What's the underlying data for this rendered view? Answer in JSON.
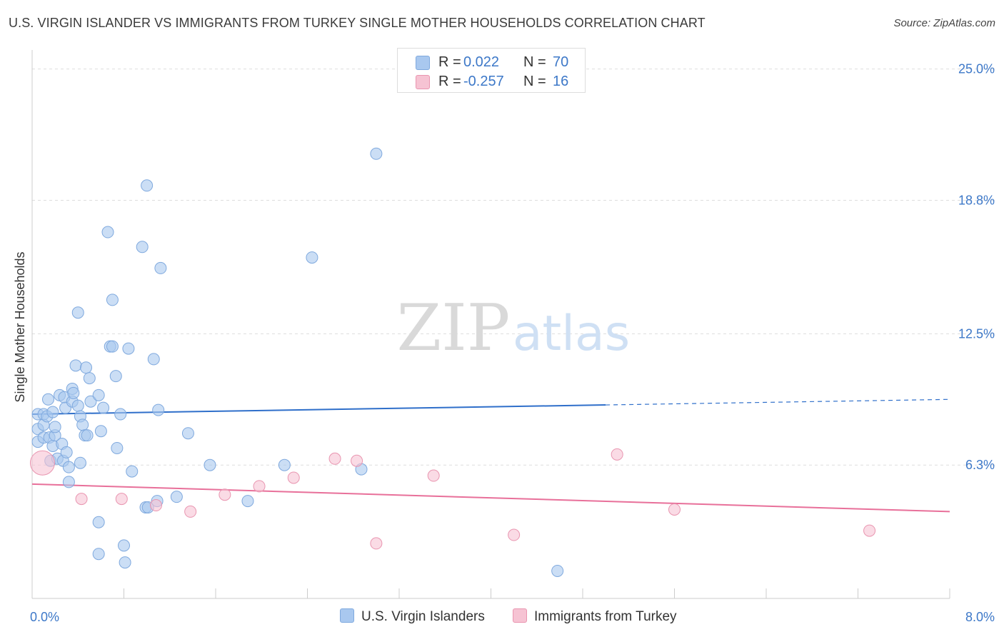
{
  "title": "U.S. VIRGIN ISLANDER VS IMMIGRANTS FROM TURKEY SINGLE MOTHER HOUSEHOLDS CORRELATION CHART",
  "source": "Source: ZipAtlas.com",
  "watermark": {
    "zip": "ZIP",
    "atlas": "atlas"
  },
  "colors": {
    "blue_fill": "#a9c8ef",
    "blue_stroke": "#7fa9de",
    "blue_line": "#2f6fca",
    "pink_fill": "#f6c3d3",
    "pink_stroke": "#e995b0",
    "pink_line": "#e8709a",
    "axis_text": "#3d78c8",
    "grid": "#dddddd"
  },
  "legend_top": {
    "rows": [
      {
        "r_label": "R =",
        "r_value": "0.022",
        "n_label": "N =",
        "n_value": "70"
      },
      {
        "r_label": "R =",
        "r_value": "-0.257",
        "n_label": "N =",
        "n_value": "16"
      }
    ]
  },
  "legend_bottom": {
    "items": [
      {
        "label": "U.S. Virgin Islanders"
      },
      {
        "label": "Immigrants from Turkey"
      }
    ]
  },
  "chart_data": {
    "type": "scatter",
    "title": "U.S. VIRGIN ISLANDER VS IMMIGRANTS FROM TURKEY SINGLE MOTHER HOUSEHOLDS CORRELATION CHART",
    "xlabel": "",
    "ylabel": "Single Mother Households",
    "xlim": [
      0,
      8
    ],
    "ylim": [
      0,
      25.9
    ],
    "x_tick_labels": [
      {
        "value": 0,
        "label": "0.0%"
      },
      {
        "value": 8,
        "label": "8.0%"
      }
    ],
    "y_tick_labels": [
      {
        "value": 6.3,
        "label": "6.3%"
      },
      {
        "value": 12.5,
        "label": "12.5%"
      },
      {
        "value": 18.8,
        "label": "18.8%"
      },
      {
        "value": 25.0,
        "label": "25.0%"
      }
    ],
    "x_ticks": [
      0,
      0.8,
      1.6,
      2.4,
      3.2,
      4.0,
      4.8,
      5.6,
      6.4,
      7.2,
      8.0
    ],
    "grid": true,
    "legend_position": "top-center",
    "series": [
      {
        "name": "U.S. Virgin Islanders",
        "color": "#a9c8ef",
        "R": 0.022,
        "N": 70,
        "trend": {
          "x0": 0,
          "y0": 8.7,
          "x_solid_end": 5.0,
          "x1": 8.0,
          "y1": 9.4
        },
        "points": [
          {
            "x": 0.05,
            "y": 8.7
          },
          {
            "x": 0.05,
            "y": 8.0
          },
          {
            "x": 0.05,
            "y": 7.4
          },
          {
            "x": 0.1,
            "y": 8.2
          },
          {
            "x": 0.1,
            "y": 7.6
          },
          {
            "x": 0.1,
            "y": 8.7
          },
          {
            "x": 0.13,
            "y": 8.6
          },
          {
            "x": 0.14,
            "y": 9.4
          },
          {
            "x": 0.15,
            "y": 7.6
          },
          {
            "x": 0.16,
            "y": 6.5
          },
          {
            "x": 0.18,
            "y": 7.2
          },
          {
            "x": 0.18,
            "y": 8.8
          },
          {
            "x": 0.2,
            "y": 7.7
          },
          {
            "x": 0.2,
            "y": 8.1
          },
          {
            "x": 0.22,
            "y": 6.6
          },
          {
            "x": 0.24,
            "y": 9.6
          },
          {
            "x": 0.26,
            "y": 7.3
          },
          {
            "x": 0.27,
            "y": 6.5
          },
          {
            "x": 0.28,
            "y": 9.5
          },
          {
            "x": 0.29,
            "y": 9.0
          },
          {
            "x": 0.3,
            "y": 6.9
          },
          {
            "x": 0.32,
            "y": 6.2
          },
          {
            "x": 0.32,
            "y": 5.5
          },
          {
            "x": 0.35,
            "y": 9.3
          },
          {
            "x": 0.35,
            "y": 9.9
          },
          {
            "x": 0.36,
            "y": 9.7
          },
          {
            "x": 0.38,
            "y": 11.0
          },
          {
            "x": 0.4,
            "y": 9.1
          },
          {
            "x": 0.4,
            "y": 13.5
          },
          {
            "x": 0.42,
            "y": 6.4
          },
          {
            "x": 0.42,
            "y": 8.6
          },
          {
            "x": 0.44,
            "y": 8.2
          },
          {
            "x": 0.46,
            "y": 7.7
          },
          {
            "x": 0.47,
            "y": 10.9
          },
          {
            "x": 0.48,
            "y": 7.7
          },
          {
            "x": 0.5,
            "y": 10.4
          },
          {
            "x": 0.51,
            "y": 9.3
          },
          {
            "x": 0.58,
            "y": 9.6
          },
          {
            "x": 0.58,
            "y": 3.6
          },
          {
            "x": 0.58,
            "y": 2.1
          },
          {
            "x": 0.6,
            "y": 7.9
          },
          {
            "x": 0.62,
            "y": 9.0
          },
          {
            "x": 0.66,
            "y": 17.3
          },
          {
            "x": 0.68,
            "y": 11.9
          },
          {
            "x": 0.7,
            "y": 11.9
          },
          {
            "x": 0.7,
            "y": 14.1
          },
          {
            "x": 0.73,
            "y": 10.5
          },
          {
            "x": 0.74,
            "y": 7.1
          },
          {
            "x": 0.77,
            "y": 8.7
          },
          {
            "x": 0.8,
            "y": 2.5
          },
          {
            "x": 0.81,
            "y": 1.7
          },
          {
            "x": 0.84,
            "y": 11.8
          },
          {
            "x": 0.87,
            "y": 6.0
          },
          {
            "x": 0.96,
            "y": 16.6
          },
          {
            "x": 0.99,
            "y": 4.3
          },
          {
            "x": 1.0,
            "y": 19.5
          },
          {
            "x": 1.01,
            "y": 4.3
          },
          {
            "x": 1.06,
            "y": 11.3
          },
          {
            "x": 1.09,
            "y": 4.6
          },
          {
            "x": 1.1,
            "y": 8.9
          },
          {
            "x": 1.12,
            "y": 15.6
          },
          {
            "x": 1.26,
            "y": 4.8
          },
          {
            "x": 1.36,
            "y": 7.8
          },
          {
            "x": 1.55,
            "y": 6.3
          },
          {
            "x": 1.88,
            "y": 4.6
          },
          {
            "x": 2.2,
            "y": 6.3
          },
          {
            "x": 2.44,
            "y": 16.1
          },
          {
            "x": 2.87,
            "y": 6.1
          },
          {
            "x": 3.0,
            "y": 21.0
          },
          {
            "x": 4.58,
            "y": 1.3
          }
        ]
      },
      {
        "name": "Immigrants from Turkey",
        "color": "#f6c3d3",
        "R": -0.257,
        "N": 16,
        "trend": {
          "x0": 0,
          "y0": 5.4,
          "x1": 8.0,
          "y1": 4.1
        },
        "points": [
          {
            "x": 0.09,
            "y": 6.4,
            "size": "large"
          },
          {
            "x": 0.43,
            "y": 4.7
          },
          {
            "x": 0.78,
            "y": 4.7
          },
          {
            "x": 1.08,
            "y": 4.4
          },
          {
            "x": 1.38,
            "y": 4.1
          },
          {
            "x": 1.68,
            "y": 4.9
          },
          {
            "x": 1.98,
            "y": 5.3
          },
          {
            "x": 2.28,
            "y": 5.7
          },
          {
            "x": 2.64,
            "y": 6.6
          },
          {
            "x": 2.83,
            "y": 6.5
          },
          {
            "x": 3.0,
            "y": 2.6
          },
          {
            "x": 3.5,
            "y": 5.8
          },
          {
            "x": 4.2,
            "y": 3.0
          },
          {
            "x": 5.1,
            "y": 6.8
          },
          {
            "x": 5.6,
            "y": 4.2
          },
          {
            "x": 7.3,
            "y": 3.2
          }
        ]
      }
    ]
  }
}
